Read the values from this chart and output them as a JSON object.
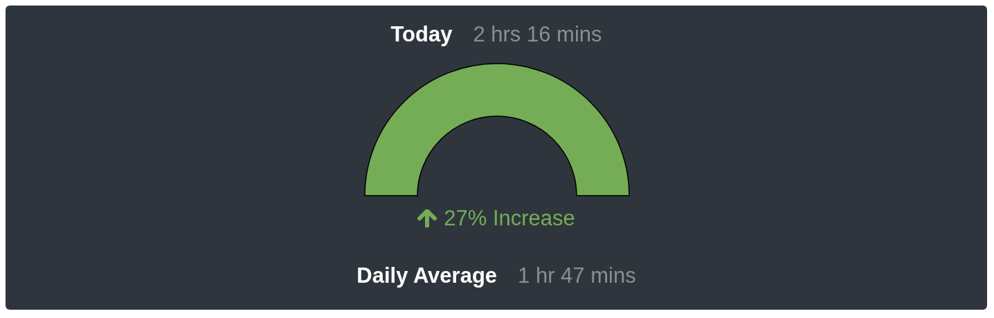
{
  "chart_data": {
    "type": "pie",
    "title": "Today",
    "subtitle": "2 hrs 16 mins",
    "categories": [
      null
    ],
    "values": [
      100
    ],
    "colors": [
      "#74ad55"
    ],
    "annotations": [
      "27% Increase",
      "Daily Average",
      "1 hr 47 mins"
    ]
  }
}
